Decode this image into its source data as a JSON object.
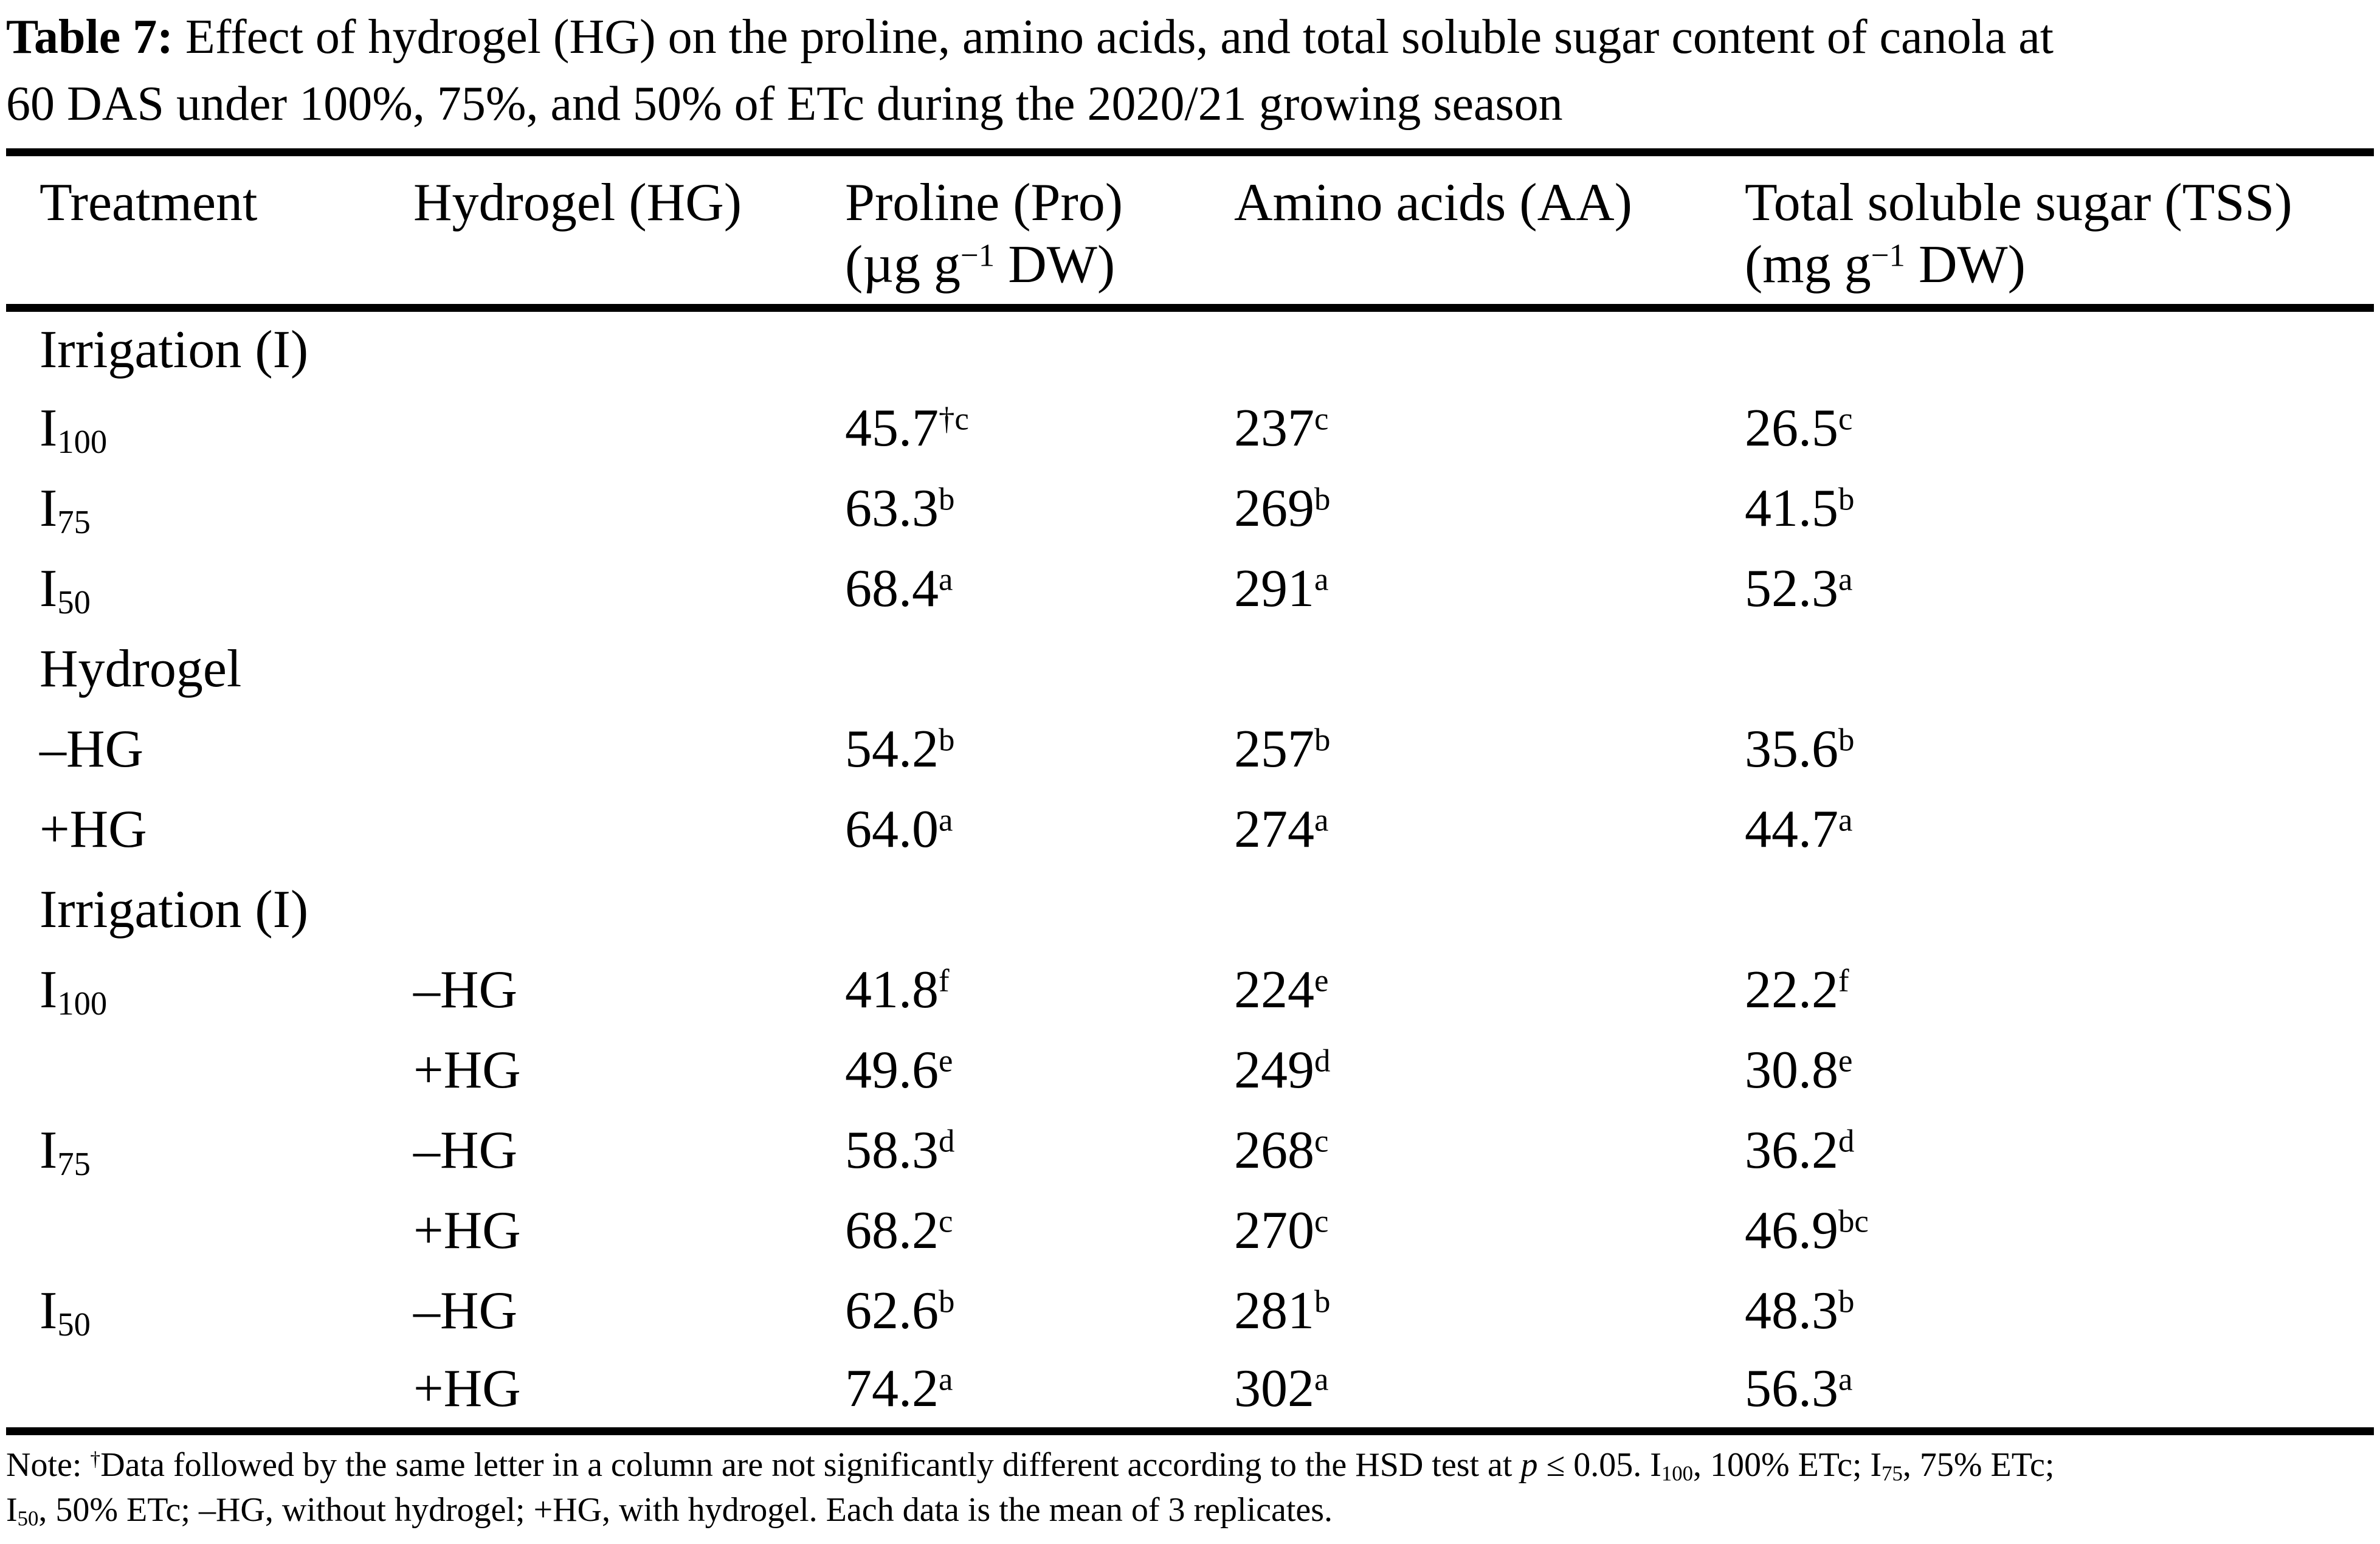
{
  "title": {
    "bold": "Table 7:",
    "line1": " Effect of hydrogel (HG) on the proline, amino acids, and total soluble sugar content of canola at",
    "line2": "60 DAS under 100%, 75%, and 50% of ETc during the 2020/21 growing season"
  },
  "header": {
    "treatment": "Treatment",
    "hydrogel": "Hydrogel (HG)",
    "proline": {
      "name": "Proline (Pro)",
      "unit_prefix": "(µg g",
      "unit_sup": "−1",
      "unit_suffix": " DW)"
    },
    "amino": "Amino acids (AA)",
    "tss": {
      "name": "Total soluble sugar (TSS)",
      "unit_prefix": "(mg g",
      "unit_sup": "−1",
      "unit_suffix": " DW)"
    }
  },
  "rows": [
    {
      "section": "Irrigation (I)"
    },
    {
      "t_base": "I",
      "t_sub": "100",
      "hg": "",
      "pro": "45.7",
      "pro_sup": "†c",
      "aa": "237",
      "aa_sup": "c",
      "tss": "26.5",
      "tss_sup": "c"
    },
    {
      "t_base": "I",
      "t_sub": "75",
      "hg": "",
      "pro": "63.3",
      "pro_sup": "b",
      "aa": "269",
      "aa_sup": "b",
      "tss": "41.5",
      "tss_sup": "b"
    },
    {
      "t_base": "I",
      "t_sub": "50",
      "hg": "",
      "pro": "68.4",
      "pro_sup": "a",
      "aa": "291",
      "aa_sup": "a",
      "tss": "52.3",
      "tss_sup": "a"
    },
    {
      "section": "Hydrogel"
    },
    {
      "t_base": "–HG",
      "t_sub": "",
      "hg": "",
      "pro": "54.2",
      "pro_sup": "b",
      "aa": "257",
      "aa_sup": "b",
      "tss": "35.6",
      "tss_sup": "b"
    },
    {
      "t_base": "+HG",
      "t_sub": "",
      "hg": "",
      "pro": "64.0",
      "pro_sup": "a",
      "aa": "274",
      "aa_sup": "a",
      "tss": "44.7",
      "tss_sup": "a"
    },
    {
      "section": "Irrigation (I)"
    },
    {
      "t_base": "I",
      "t_sub": "100",
      "hg": "–HG",
      "pro": "41.8",
      "pro_sup": "f",
      "aa": "224",
      "aa_sup": "e",
      "tss": "22.2",
      "tss_sup": "f"
    },
    {
      "t_base": "",
      "t_sub": "",
      "hg": "+HG",
      "pro": "49.6",
      "pro_sup": "e",
      "aa": "249",
      "aa_sup": "d",
      "tss": "30.8",
      "tss_sup": "e"
    },
    {
      "t_base": "I",
      "t_sub": "75",
      "hg": "–HG",
      "pro": "58.3",
      "pro_sup": "d",
      "aa": "268",
      "aa_sup": "c",
      "tss": "36.2",
      "tss_sup": "d"
    },
    {
      "t_base": "",
      "t_sub": "",
      "hg": "+HG",
      "pro": "68.2",
      "pro_sup": "c",
      "aa": "270",
      "aa_sup": "c",
      "tss": "46.9",
      "tss_sup": "bc"
    },
    {
      "t_base": "I",
      "t_sub": "50",
      "hg": "–HG",
      "pro": "62.6",
      "pro_sup": "b",
      "aa": "281",
      "aa_sup": "b",
      "tss": "48.3",
      "tss_sup": "b"
    },
    {
      "t_base": "",
      "t_sub": "",
      "hg": "+HG",
      "pro": "74.2",
      "pro_sup": "a",
      "aa": "302",
      "aa_sup": "a",
      "tss": "56.3",
      "tss_sup": "a"
    }
  ],
  "note": {
    "p1": "Note: ",
    "p2": "†",
    "p3": "Data followed by the same letter in a column are not significantly different according to the HSD test at ",
    "p4": "p",
    "p5": " ≤ 0.05. I",
    "p6": "100",
    "p7": ", 100% ETc; I",
    "p8": "75",
    "p9": ", 75% ETc;",
    "q1": "I",
    "q2": "50",
    "q3": ", 50% ETc; –HG, without hydrogel; +HG, with hydrogel. Each data is the mean of 3 replicates."
  }
}
